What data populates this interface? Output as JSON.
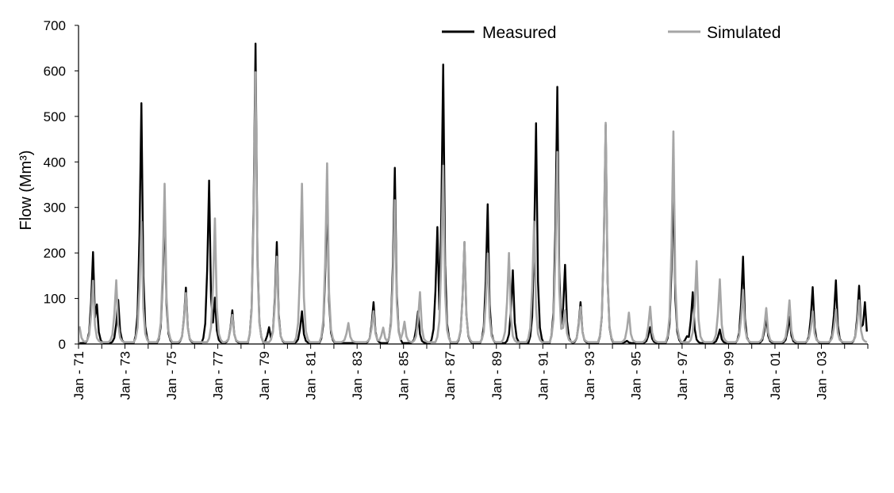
{
  "colors": {
    "measured": "#000000",
    "simulated": "#a6a6a6",
    "axis": "#000000"
  },
  "chart_data": {
    "type": "line",
    "title": "",
    "xlabel": "",
    "ylabel": "Flow (Mm³)",
    "ylim": [
      0,
      700
    ],
    "yticks": [
      0,
      100,
      200,
      300,
      400,
      500,
      600,
      700
    ],
    "x_start": "Jan - 71",
    "x_end": "Dec - 04",
    "x_tick_labels": [
      "Jan - 71",
      "Jan - 73",
      "Jan - 75",
      "Jan - 77",
      "Jan - 79",
      "Jan - 81",
      "Jan - 83",
      "Jan - 85",
      "Jan - 87",
      "Jan - 89",
      "Jan - 91",
      "Jan - 93",
      "Jan - 95",
      "Jan - 97",
      "Jan - 99",
      "Jan - 01",
      "Jan - 03"
    ],
    "grid": false,
    "legend_position": "top-right",
    "series": [
      {
        "name": "Measured",
        "color": "#000000",
        "peaks": [
          {
            "date": "1971-08",
            "value": 200
          },
          {
            "date": "1971-10",
            "value": 85
          },
          {
            "date": "1972-09",
            "value": 95
          },
          {
            "date": "1973-09",
            "value": 527
          },
          {
            "date": "1974-09",
            "value": 300
          },
          {
            "date": "1975-08",
            "value": 122
          },
          {
            "date": "1976-08",
            "value": 357
          },
          {
            "date": "1976-11",
            "value": 100
          },
          {
            "date": "1977-08",
            "value": 72
          },
          {
            "date": "1978-08",
            "value": 658
          },
          {
            "date": "1979-03",
            "value": 35
          },
          {
            "date": "1979-07",
            "value": 222
          },
          {
            "date": "1980-08",
            "value": 70
          },
          {
            "date": "1981-09",
            "value": 330
          },
          {
            "date": "1983-09",
            "value": 90
          },
          {
            "date": "1984-08",
            "value": 385
          },
          {
            "date": "1985-08",
            "value": 70
          },
          {
            "date": "1986-06",
            "value": 255
          },
          {
            "date": "1986-09",
            "value": 612
          },
          {
            "date": "1987-08",
            "value": 222
          },
          {
            "date": "1988-08",
            "value": 305
          },
          {
            "date": "1989-09",
            "value": 160
          },
          {
            "date": "1990-09",
            "value": 483
          },
          {
            "date": "1991-08",
            "value": 563
          },
          {
            "date": "1991-12",
            "value": 172
          },
          {
            "date": "1992-08",
            "value": 90
          },
          {
            "date": "1993-09",
            "value": 480
          },
          {
            "date": "1994-08",
            "value": 5
          },
          {
            "date": "1995-08",
            "value": 35
          },
          {
            "date": "1996-08",
            "value": 352
          },
          {
            "date": "1997-03",
            "value": 15
          },
          {
            "date": "1997-06",
            "value": 112
          },
          {
            "date": "1998-08",
            "value": 30
          },
          {
            "date": "1999-08",
            "value": 190
          },
          {
            "date": "2000-08",
            "value": 57
          },
          {
            "date": "2001-08",
            "value": 58
          },
          {
            "date": "2002-08",
            "value": 123
          },
          {
            "date": "2003-08",
            "value": 138
          },
          {
            "date": "2004-08",
            "value": 126
          },
          {
            "date": "2004-11",
            "value": 90
          }
        ]
      },
      {
        "name": "Simulated",
        "color": "#a6a6a6",
        "peaks": [
          {
            "date": "1971-01",
            "value": 35
          },
          {
            "date": "1971-08",
            "value": 135
          },
          {
            "date": "1972-08",
            "value": 136
          },
          {
            "date": "1973-09",
            "value": 265
          },
          {
            "date": "1974-09",
            "value": 348
          },
          {
            "date": "1975-08",
            "value": 108
          },
          {
            "date": "1976-11",
            "value": 272
          },
          {
            "date": "1977-08",
            "value": 60
          },
          {
            "date": "1978-08",
            "value": 593
          },
          {
            "date": "1979-07",
            "value": 188
          },
          {
            "date": "1980-08",
            "value": 348
          },
          {
            "date": "1981-09",
            "value": 393
          },
          {
            "date": "1982-08",
            "value": 42
          },
          {
            "date": "1983-09",
            "value": 68
          },
          {
            "date": "1984-02",
            "value": 32
          },
          {
            "date": "1984-08",
            "value": 312
          },
          {
            "date": "1985-01",
            "value": 45
          },
          {
            "date": "1985-09",
            "value": 110
          },
          {
            "date": "1986-09",
            "value": 388
          },
          {
            "date": "1987-08",
            "value": 220
          },
          {
            "date": "1988-08",
            "value": 195
          },
          {
            "date": "1989-07",
            "value": 196
          },
          {
            "date": "1990-08",
            "value": 265
          },
          {
            "date": "1991-08",
            "value": 418
          },
          {
            "date": "1991-12",
            "value": 70
          },
          {
            "date": "1992-08",
            "value": 77
          },
          {
            "date": "1993-09",
            "value": 482
          },
          {
            "date": "1994-09",
            "value": 65
          },
          {
            "date": "1995-08",
            "value": 78
          },
          {
            "date": "1996-08",
            "value": 463
          },
          {
            "date": "1997-08",
            "value": 178
          },
          {
            "date": "1998-08",
            "value": 138
          },
          {
            "date": "1999-08",
            "value": 115
          },
          {
            "date": "2000-08",
            "value": 75
          },
          {
            "date": "2001-08",
            "value": 92
          },
          {
            "date": "2002-08",
            "value": 68
          },
          {
            "date": "2003-08",
            "value": 72
          },
          {
            "date": "2004-08",
            "value": 92
          }
        ]
      }
    ]
  }
}
